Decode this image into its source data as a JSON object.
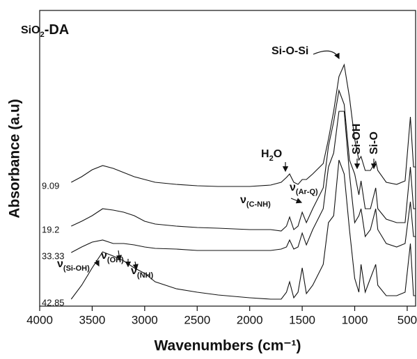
{
  "chart_data": {
    "type": "line",
    "title": {
      "text": "SiO",
      "sub": "2",
      "tail": "-DA"
    },
    "x_label": "Wavenumbers (cm⁻¹)",
    "y_label": "Absorbance (a.u)",
    "xlim": [
      4000,
      420
    ],
    "ylim": [
      0,
      425
    ],
    "xticks": [
      4000,
      3500,
      3000,
      2500,
      2000,
      1500,
      1000,
      500
    ],
    "color": "#111111",
    "x": [
      3700,
      3600,
      3500,
      3400,
      3300,
      3200,
      3100,
      3000,
      2900,
      2700,
      2500,
      2300,
      2000,
      1800,
      1700,
      1650,
      1620,
      1580,
      1540,
      1500,
      1460,
      1400,
      1300,
      1250,
      1200,
      1150,
      1100,
      1050,
      1000,
      960,
      940,
      900,
      850,
      800,
      780,
      700,
      600,
      520,
      470,
      440,
      420
    ],
    "series": [
      {
        "name": "9.09",
        "values": [
          178,
          186,
          196,
          202,
          198,
          192,
          186,
          182,
          178,
          175,
          173,
          172,
          172,
          174,
          178,
          185,
          190,
          178,
          175,
          182,
          182,
          190,
          205,
          240,
          280,
          330,
          347,
          300,
          240,
          210,
          215,
          195,
          195,
          208,
          195,
          178,
          175,
          180,
          272,
          200,
          200
        ]
      },
      {
        "name": "19.2",
        "values": [
          115,
          122,
          130,
          140,
          138,
          135,
          130,
          122,
          118,
          115,
          113,
          112,
          110,
          110,
          108,
          115,
          128,
          110,
          115,
          135,
          120,
          140,
          170,
          230,
          265,
          310,
          290,
          210,
          190,
          160,
          180,
          140,
          140,
          170,
          140,
          125,
          120,
          120,
          200,
          140,
          140
        ]
      },
      {
        "name": "33.33",
        "values": [
          77,
          85,
          92,
          95,
          90,
          90,
          88,
          85,
          83,
          82,
          80,
          80,
          80,
          80,
          82,
          85,
          95,
          82,
          85,
          105,
          88,
          110,
          140,
          200,
          220,
          280,
          280,
          190,
          120,
          130,
          140,
          100,
          110,
          140,
          110,
          90,
          85,
          90,
          150,
          100,
          100
        ]
      },
      {
        "name": "42.85",
        "values": [
          10,
          30,
          55,
          78,
          72,
          65,
          55,
          47,
          35,
          25,
          20,
          16,
          12,
          10,
          10,
          20,
          35,
          12,
          20,
          55,
          18,
          30,
          60,
          120,
          130,
          210,
          190,
          110,
          40,
          20,
          60,
          20,
          40,
          60,
          30,
          15,
          15,
          20,
          90,
          15,
          15
        ]
      }
    ],
    "annotations": [
      {
        "text": "Si-O-Si"
      },
      {
        "text": "H",
        "sub": "2",
        "tail": "O"
      },
      {
        "text": "Si-OH"
      },
      {
        "text": "Si-O"
      },
      {
        "text": "ν",
        "sub": "(Ar-Q)"
      },
      {
        "text": "ν",
        "sub": "(C-NH)"
      },
      {
        "text": "ν",
        "sub": "(Si-OH)"
      },
      {
        "text": "ν",
        "sub": "(OH)"
      },
      {
        "text": "ν",
        "sub": "(NH)"
      }
    ]
  }
}
